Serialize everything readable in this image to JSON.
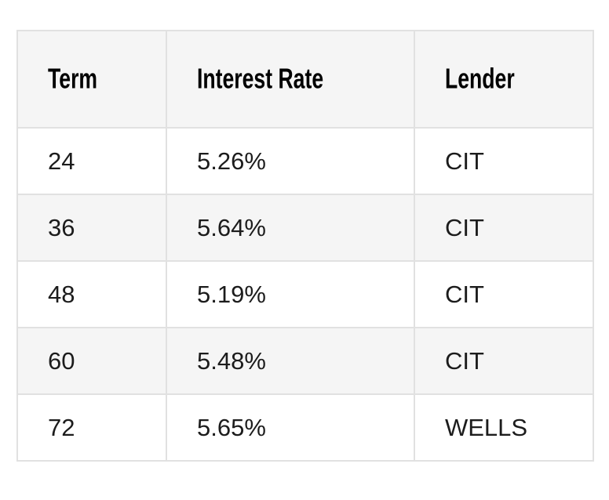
{
  "colors": {
    "page_bg": "#ffffff",
    "header_bg": "#f5f5f5",
    "row_bg": "#ffffff",
    "stripe_bg": "#f5f5f5",
    "border": "#e1e1e1",
    "header_text": "#000000",
    "text": "#1c1c1c"
  },
  "chart_data": {
    "type": "table",
    "title": "",
    "columns": [
      "Term",
      "Interest Rate",
      "Lender"
    ],
    "rows": [
      [
        "24",
        "5.26%",
        "CIT"
      ],
      [
        "36",
        "5.64%",
        "CIT"
      ],
      [
        "48",
        "5.19%",
        "CIT"
      ],
      [
        "60",
        "5.48%",
        "CIT"
      ],
      [
        "72",
        "5.65%",
        "WELLS"
      ]
    ],
    "layout_hints": {
      "header_row": true,
      "striped_rows": true,
      "grid": true
    }
  }
}
